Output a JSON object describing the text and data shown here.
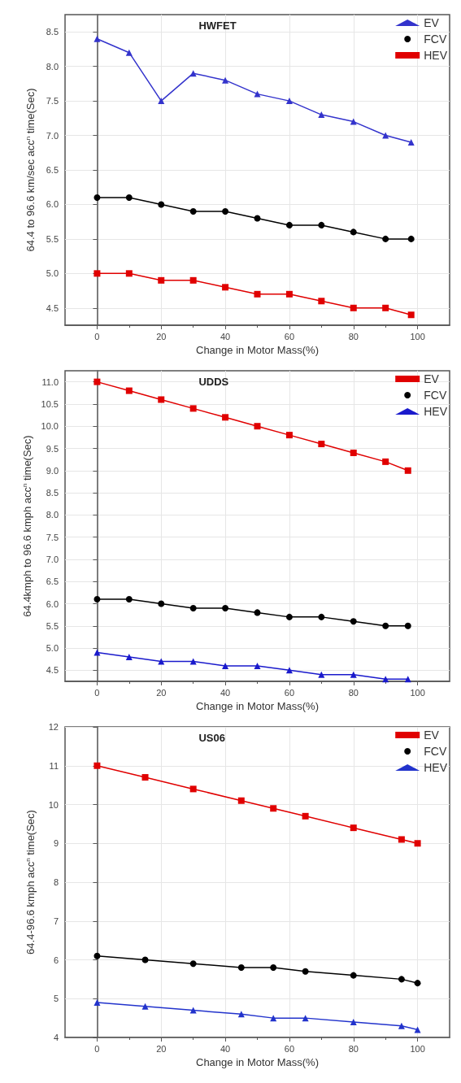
{
  "chart_data": [
    {
      "type": "line",
      "title": "HWFET",
      "xlabel": "Change in Motor Mass(%)",
      "ylabel": "64.4 to 96.6 km/sec acc$^{n}$ time(Sec)",
      "x": [
        0,
        10,
        20,
        30,
        40,
        50,
        60,
        70,
        80,
        90,
        98
      ],
      "xlim": [
        -10,
        110
      ],
      "xticks": [
        0,
        20,
        40,
        60,
        80,
        100
      ],
      "ylim": [
        4.25,
        8.75
      ],
      "yticks": [
        4.5,
        {
          "value": 5,
          "label": "5.0"
        },
        5.5,
        {
          "value": 6,
          "label": "6.0"
        },
        6.5,
        {
          "value": 7,
          "label": "7.0"
        },
        7.5,
        {
          "value": 8,
          "label": "8.0"
        },
        8.5
      ],
      "grid": true,
      "legend": "top right",
      "series": [
        {
          "name": "EV",
          "color": "#3333cc",
          "marker": "triangle",
          "values": [
            8.4,
            8.2,
            7.5,
            7.9,
            7.8,
            7.6,
            7.5,
            7.3,
            7.2,
            7.0,
            6.9
          ]
        },
        {
          "name": "FCV",
          "color": "#000000",
          "marker": "circle",
          "values": [
            6.1,
            6.1,
            6.0,
            5.9,
            5.9,
            5.8,
            5.7,
            5.7,
            5.6,
            5.5,
            5.5
          ]
        },
        {
          "name": "HEV",
          "color": "#e00000",
          "marker": "square",
          "values": [
            5.0,
            5.0,
            4.9,
            4.9,
            4.8,
            4.7,
            4.7,
            4.6,
            4.5,
            4.5,
            4.4
          ]
        }
      ]
    },
    {
      "type": "line",
      "title": "UDDS",
      "xlabel": "Change in Motor Mass(%)",
      "ylabel": "64.4kmph to 96.6 kmph acc$^{n}$ time(Sec)",
      "x": [
        0,
        10,
        20,
        30,
        40,
        50,
        60,
        70,
        80,
        90,
        97
      ],
      "xlim": [
        -10,
        110
      ],
      "xticks": [
        0,
        20,
        40,
        60,
        80,
        100
      ],
      "ylim": [
        4.25,
        11.25
      ],
      "yticks": [
        4.5,
        {
          "value": 5,
          "label": "5.0"
        },
        5.5,
        {
          "value": 6,
          "label": "6.0"
        },
        6.5,
        {
          "value": 7,
          "label": "7.0"
        },
        7.5,
        {
          "value": 8,
          "label": "8.0"
        },
        8.5,
        {
          "value": 9,
          "label": "9.0"
        },
        9.5,
        {
          "value": 10,
          "label": "10.0"
        },
        10.5,
        {
          "value": 11,
          "label": "11.0"
        }
      ],
      "grid": true,
      "legend": "top right",
      "series": [
        {
          "name": "EV",
          "color": "#e00000",
          "marker": "square",
          "values": [
            11.0,
            10.8,
            10.6,
            10.4,
            10.2,
            10.0,
            9.8,
            9.6,
            9.4,
            9.2,
            9.0
          ]
        },
        {
          "name": "FCV",
          "color": "#000000",
          "marker": "circle",
          "values": [
            6.1,
            6.1,
            6.0,
            5.9,
            5.9,
            5.8,
            5.7,
            5.7,
            5.6,
            5.5,
            5.5
          ]
        },
        {
          "name": "HEV",
          "color": "#1a1acc",
          "marker": "triangle",
          "values": [
            4.9,
            4.8,
            4.7,
            4.7,
            4.6,
            4.6,
            4.5,
            4.4,
            4.4,
            4.3,
            4.3
          ]
        }
      ]
    },
    {
      "type": "line",
      "title": "US06",
      "xlabel": "Change in Motor Mass(%)",
      "ylabel": "64.4-96.6 kmph acc$^{n}$ time(Sec)",
      "x": [
        0,
        15,
        30,
        45,
        55,
        65,
        80,
        95,
        100
      ],
      "xlim": [
        -10,
        110
      ],
      "xticks": [
        0,
        20,
        40,
        60,
        80,
        100
      ],
      "ylim": [
        4,
        12
      ],
      "yticks": [
        4,
        5,
        6,
        7,
        8,
        9,
        10,
        11,
        12
      ],
      "grid": true,
      "legend": "top right",
      "series": [
        {
          "name": "EV",
          "color": "#e00000",
          "marker": "square",
          "values": [
            11.0,
            10.7,
            10.4,
            10.1,
            9.9,
            9.7,
            9.4,
            9.1,
            9.0
          ]
        },
        {
          "name": "FCV",
          "color": "#000000",
          "marker": "circle",
          "values": [
            6.1,
            6.0,
            5.9,
            5.8,
            5.8,
            5.7,
            5.6,
            5.5,
            5.4
          ]
        },
        {
          "name": "HEV",
          "color": "#2233cc",
          "marker": "triangle",
          "values": [
            4.9,
            4.8,
            4.7,
            4.6,
            4.5,
            4.5,
            4.4,
            4.3,
            4.2
          ]
        }
      ]
    }
  ]
}
